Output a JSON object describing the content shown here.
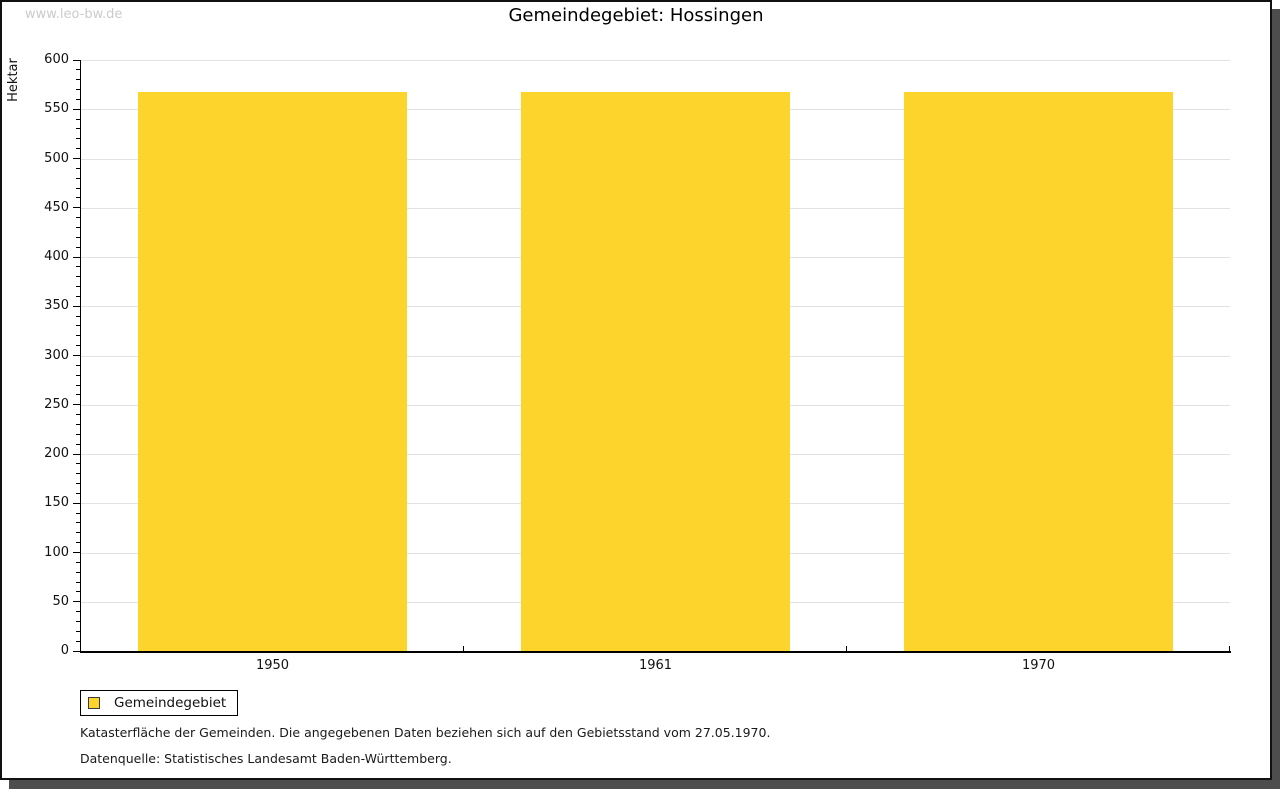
{
  "watermark": "www.leo-bw.de",
  "chart_data": {
    "type": "bar",
    "title": "Gemeindegebiet: Hossingen",
    "categories": [
      "1950",
      "1961",
      "1970"
    ],
    "series": [
      {
        "name": "Gemeindegebiet",
        "values": [
          568,
          568,
          568
        ],
        "color": "#FCD42C"
      }
    ],
    "xlabel": "",
    "ylabel": "Hektar",
    "ylim": [
      0,
      600
    ],
    "ytick_step": 50,
    "minor_tick_step": 10,
    "grid": "horizontal-major",
    "legend_position": "bottom-left"
  },
  "legend": {
    "items": [
      {
        "label": "Gemeindegebiet",
        "color": "#FCD42C"
      }
    ]
  },
  "footer": {
    "line1": "Katasterfläche der Gemeinden. Die angegebenen Daten beziehen sich auf den Gebietsstand vom 27.05.1970.",
    "line2": "Datenquelle: Statistisches Landesamt Baden-Württemberg."
  },
  "colors": {
    "bar": "#FCD42C",
    "grid": "#e2e2e2",
    "axis": "#000000",
    "watermark": "#cbcbcb",
    "frame_border": "#111111",
    "frame_shadow": "#4d4d4d"
  }
}
